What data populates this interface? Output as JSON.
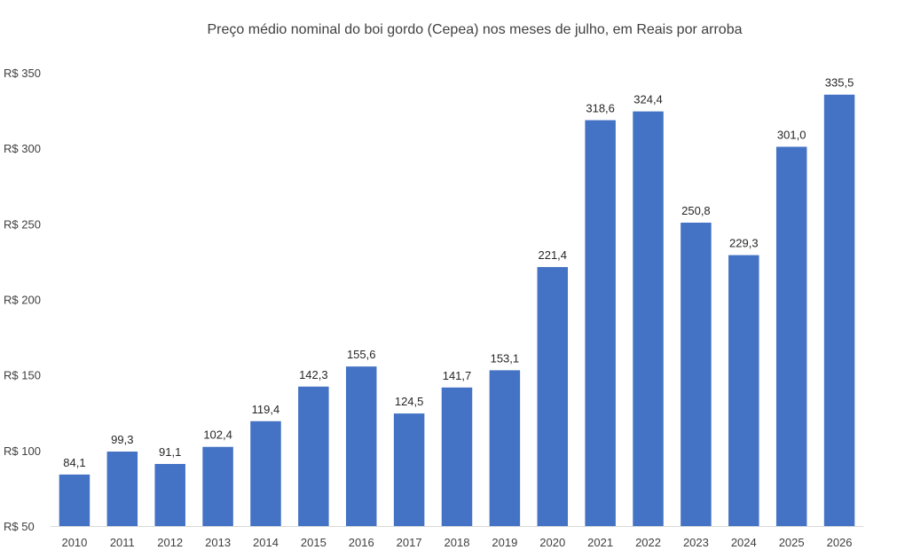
{
  "chart_data": {
    "type": "bar",
    "title": "Preço médio nominal do boi gordo (Cepea) nos meses de julho, em Reais por arroba",
    "xlabel": "",
    "ylabel": "",
    "categories": [
      "2010",
      "2011",
      "2012",
      "2013",
      "2014",
      "2015",
      "2016",
      "2017",
      "2018",
      "2019",
      "2020",
      "2021",
      "2022",
      "2023",
      "2024",
      "2025",
      "2026"
    ],
    "values": [
      84.1,
      99.3,
      91.1,
      102.4,
      119.4,
      142.3,
      155.6,
      124.5,
      141.7,
      153.1,
      221.4,
      318.6,
      324.4,
      250.8,
      229.3,
      301.0,
      335.5
    ],
    "data_labels": [
      "84,1",
      "99,3",
      "91,1",
      "102,4",
      "119,4",
      "142,3",
      "155,6",
      "124,5",
      "141,7",
      "153,1",
      "221,4",
      "318,6",
      "324,4",
      "250,8",
      "229,3",
      "301,0",
      "335,5"
    ],
    "ylim": [
      50,
      350
    ],
    "y_ticks": [
      {
        "value": 50,
        "label": "R$ 50"
      },
      {
        "value": 100,
        "label": "R$ 100"
      },
      {
        "value": 150,
        "label": "R$ 150"
      },
      {
        "value": 200,
        "label": "R$ 200"
      },
      {
        "value": 250,
        "label": "R$ 250"
      },
      {
        "value": 300,
        "label": "R$ 300"
      },
      {
        "value": 350,
        "label": "R$ 350"
      }
    ],
    "grid": false,
    "legend": "none",
    "bar_color": "#4472C4",
    "axis_color": "#D9D9D9"
  }
}
